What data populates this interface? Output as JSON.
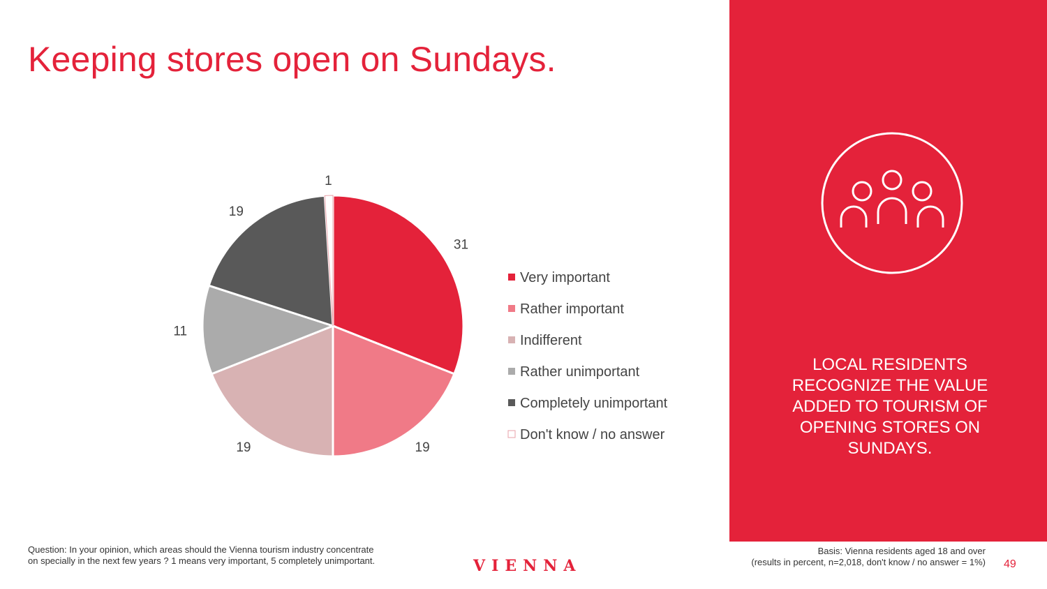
{
  "page": {
    "title": "Keeping stores open on Sundays.",
    "callout": "LOCAL RESIDENTS RECOGNIZE THE VALUE ADDED TO TOURISM OF OPENING STORES ON SUNDAYS.",
    "question": "Question: In your opinion, which areas should the Vienna tourism industry concentrate on specially in the next few years ? 1 means very important, 5 completely unimportant.",
    "basis_line1": "Basis: Vienna residents aged 18 and over",
    "basis_line2": "(results in percent, n=2,018, don't know / no answer = 1%)",
    "logo": "VIENNA",
    "page_number": "49",
    "icon": "people-group-icon"
  },
  "chart_data": {
    "type": "pie",
    "categories": [
      "Very important",
      "Rather important",
      "Indifferent",
      "Rather unimportant",
      "Completely unimportant",
      "Don't know / no answer"
    ],
    "values": [
      31,
      19,
      19,
      11,
      19,
      1
    ],
    "colors": [
      "#e4223a",
      "#f07a87",
      "#d8b2b3",
      "#ababab",
      "#595959",
      "#ffffff"
    ],
    "legend_position": "right"
  }
}
